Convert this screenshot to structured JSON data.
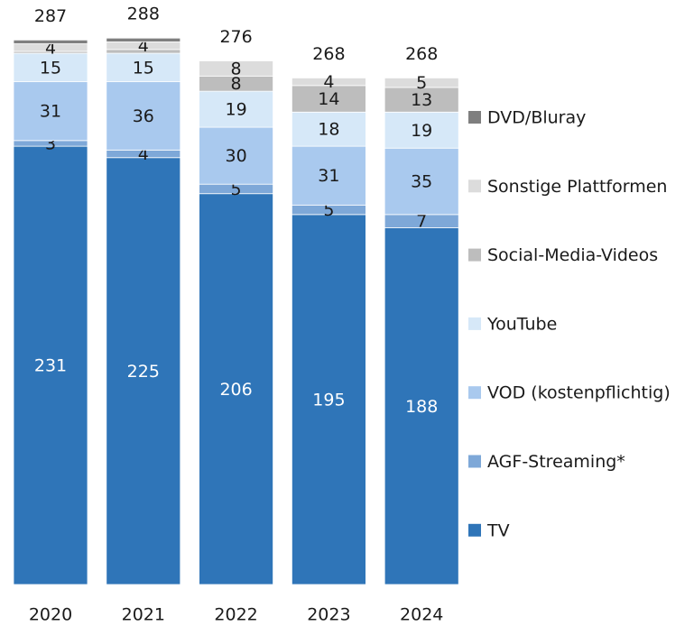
{
  "chart_data": {
    "type": "stacked_bar",
    "categories": [
      "2020",
      "2021",
      "2022",
      "2023",
      "2024"
    ],
    "totals": [
      287,
      288,
      276,
      268,
      268
    ],
    "series": [
      {
        "name": "TV",
        "color": "#2f75b8",
        "values": [
          231,
          225,
          206,
          195,
          188
        ]
      },
      {
        "name": "AGF-Streaming*",
        "color": "#7ea8d8",
        "values": [
          3,
          4,
          5,
          5,
          7
        ]
      },
      {
        "name": "VOD (kostenpflichtig)",
        "color": "#a9c9ee",
        "values": [
          31,
          36,
          30,
          31,
          35
        ]
      },
      {
        "name": "YouTube",
        "color": "#d6e8f8",
        "values": [
          15,
          15,
          19,
          18,
          19
        ]
      },
      {
        "name": "Social-Media-Videos",
        "color": "#bdbdbd",
        "values": [
          1,
          2,
          8,
          14,
          13
        ]
      },
      {
        "name": "Sonstige Plattformen",
        "color": "#dcdcdc",
        "values": [
          4,
          4,
          8,
          4,
          5
        ]
      },
      {
        "name": "DVD/Bluray",
        "color": "#7f7f7f",
        "values": [
          2,
          2,
          0,
          0,
          0
        ]
      }
    ],
    "ylim": [
      0,
      300
    ]
  }
}
